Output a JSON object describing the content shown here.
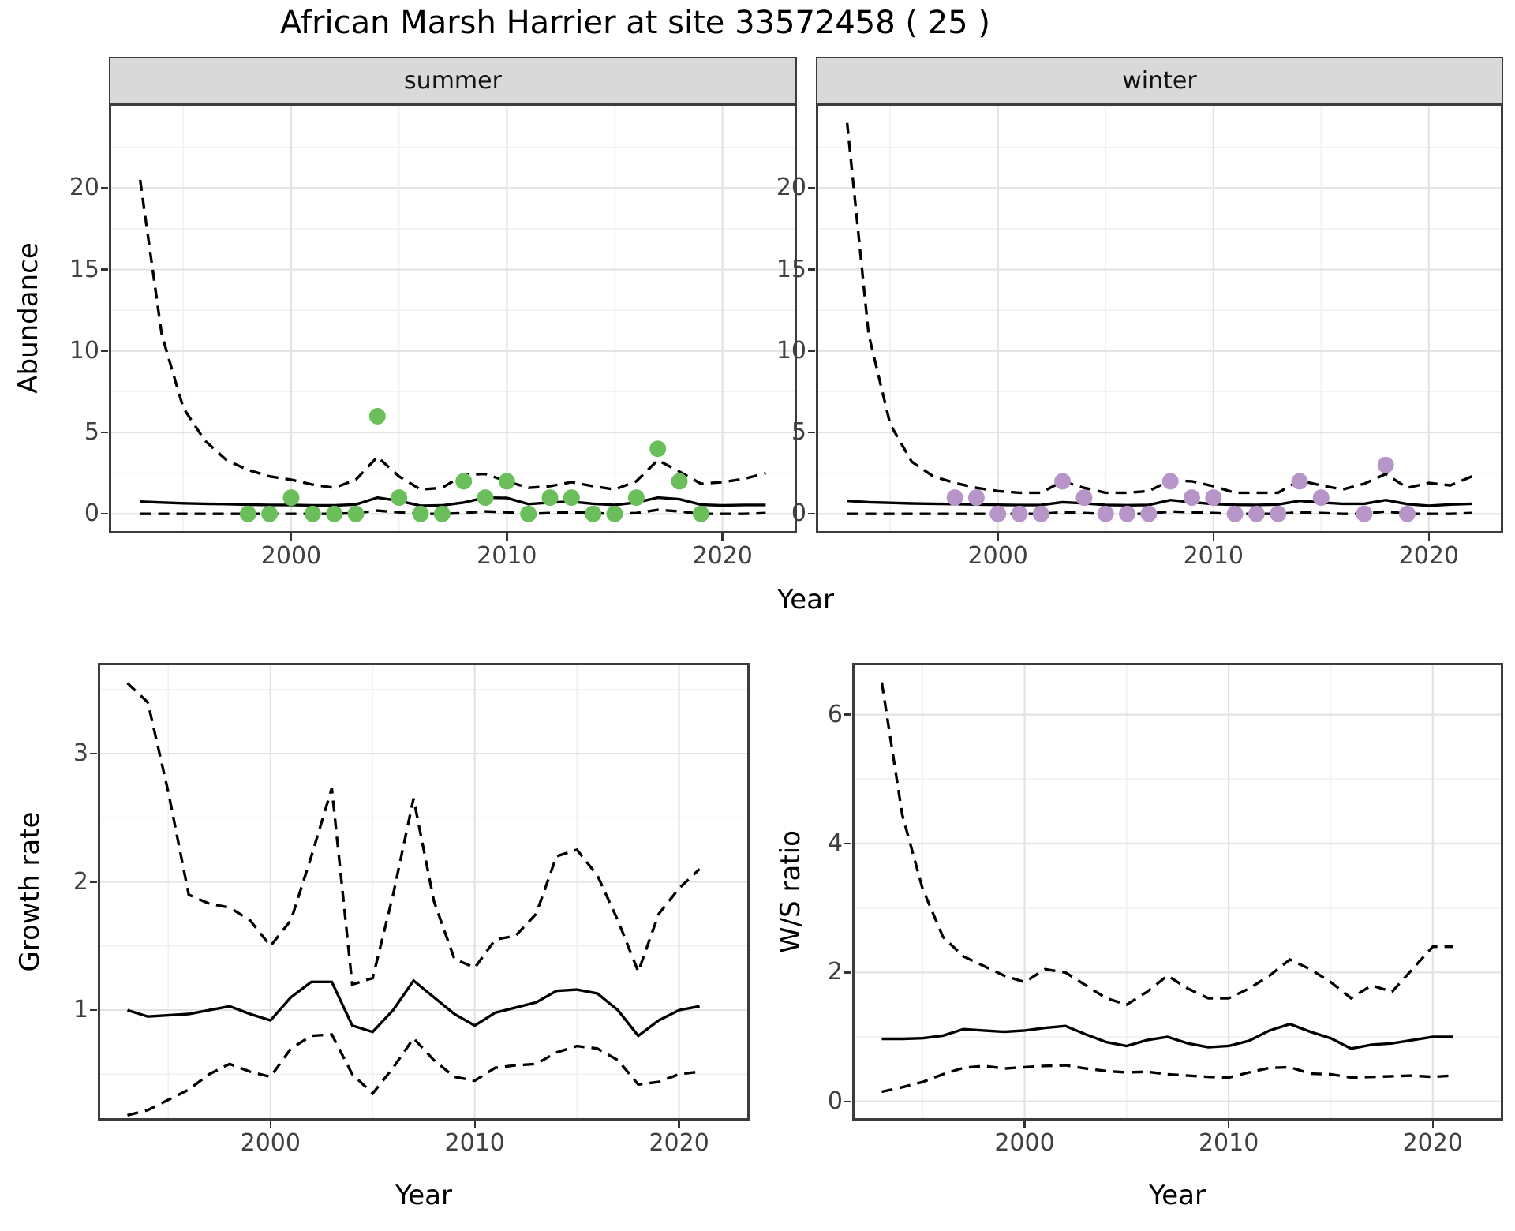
{
  "title": "African Marsh Harrier at site 33572458 ( 25 )",
  "labels": {
    "year": "Year",
    "abundance": "Abundance",
    "growth_rate": "Growth rate",
    "ws_ratio": "W/S ratio"
  },
  "colors": {
    "summer_point": "#6abf5b",
    "winter_point": "#b795c9",
    "line": "#000000",
    "strip_bg": "#d9d9d9",
    "panel_border": "#3c3c3c",
    "grid_major": "#e3e3e3",
    "grid_minor": "#f1f1f1",
    "tick_text": "#404040"
  },
  "chart_data": [
    {
      "id": "abundance-summer",
      "type": "line",
      "facet": "summer",
      "xlabel": "Year",
      "ylabel": "Abundance",
      "xlim": [
        1991.55,
        2023.45
      ],
      "ylim": [
        -1.2,
        25.2
      ],
      "xticks": [
        2000,
        2010,
        2020
      ],
      "xminor": [
        1995,
        2005,
        2015
      ],
      "yticks": [
        0,
        5,
        10,
        15,
        20
      ],
      "yminor": [
        2.5,
        7.5,
        12.5,
        17.5,
        22.5
      ],
      "years": [
        1993,
        1994,
        1995,
        1996,
        1997,
        1998,
        1999,
        2000,
        2001,
        2002,
        2003,
        2004,
        2005,
        2006,
        2007,
        2008,
        2009,
        2010,
        2011,
        2012,
        2013,
        2014,
        2015,
        2016,
        2017,
        2018,
        2019,
        2020,
        2021,
        2022
      ],
      "series": [
        {
          "name": "upper-ci",
          "style": "dashed",
          "values": [
            20.5,
            11.0,
            6.5,
            4.5,
            3.3,
            2.7,
            2.3,
            2.1,
            1.8,
            1.6,
            2.1,
            3.5,
            2.3,
            1.5,
            1.6,
            2.4,
            2.45,
            2.0,
            1.6,
            1.7,
            1.95,
            1.7,
            1.5,
            2.0,
            3.3,
            2.6,
            1.85,
            1.95,
            2.15,
            2.5
          ]
        },
        {
          "name": "median",
          "style": "solid",
          "values": [
            0.75,
            0.7,
            0.65,
            0.62,
            0.6,
            0.57,
            0.55,
            0.55,
            0.52,
            0.52,
            0.58,
            1.0,
            0.8,
            0.5,
            0.52,
            0.7,
            1.0,
            0.98,
            0.6,
            0.7,
            0.75,
            0.62,
            0.55,
            0.7,
            1.0,
            0.9,
            0.57,
            0.52,
            0.55,
            0.55
          ]
        },
        {
          "name": "lower-ci",
          "style": "dashed",
          "values": [
            0,
            0,
            0,
            0,
            0,
            0,
            0,
            0,
            0,
            0,
            0.05,
            0.2,
            0.1,
            0,
            0,
            0.05,
            0.15,
            0.1,
            0,
            0.05,
            0.1,
            0.05,
            0,
            0.05,
            0.25,
            0.15,
            0,
            0,
            0,
            0.05
          ]
        }
      ],
      "points": {
        "color": "#6abf5b",
        "years": [
          1998,
          1999,
          2000,
          2001,
          2002,
          2003,
          2004,
          2005,
          2006,
          2007,
          2008,
          2009,
          2010,
          2011,
          2012,
          2013,
          2014,
          2015,
          2016,
          2017,
          2018,
          2019
        ],
        "values": [
          0,
          0,
          1,
          0,
          0,
          0,
          6,
          1,
          0,
          0,
          2,
          1,
          2,
          0,
          1,
          1,
          0,
          0,
          1,
          4,
          2,
          0
        ]
      }
    },
    {
      "id": "abundance-winter",
      "type": "line",
      "facet": "winter",
      "xlabel": "Year",
      "ylabel": "Abundance",
      "xlim": [
        1991.55,
        2023.45
      ],
      "ylim": [
        -1.2,
        25.2
      ],
      "xticks": [
        2000,
        2010,
        2020
      ],
      "xminor": [
        1995,
        2005,
        2015
      ],
      "yticks": [
        0,
        5,
        10,
        15,
        20
      ],
      "yminor": [
        2.5,
        7.5,
        12.5,
        17.5,
        22.5
      ],
      "years": [
        1993,
        1994,
        1995,
        1996,
        1997,
        1998,
        1999,
        2000,
        2001,
        2002,
        2003,
        2004,
        2005,
        2006,
        2007,
        2008,
        2009,
        2010,
        2011,
        2012,
        2013,
        2014,
        2015,
        2016,
        2017,
        2018,
        2019,
        2020,
        2021,
        2022
      ],
      "series": [
        {
          "name": "upper-ci",
          "style": "dashed",
          "values": [
            24,
            11,
            5.5,
            3.2,
            2.3,
            1.9,
            1.6,
            1.4,
            1.3,
            1.3,
            2.0,
            1.6,
            1.3,
            1.3,
            1.4,
            2.05,
            2.0,
            1.7,
            1.3,
            1.3,
            1.3,
            2.05,
            1.75,
            1.5,
            1.85,
            2.45,
            1.6,
            1.9,
            1.75,
            2.3
          ]
        },
        {
          "name": "median",
          "style": "solid",
          "values": [
            0.8,
            0.72,
            0.68,
            0.64,
            0.62,
            0.6,
            0.58,
            0.56,
            0.54,
            0.55,
            0.72,
            0.65,
            0.55,
            0.53,
            0.55,
            0.85,
            0.72,
            0.6,
            0.56,
            0.55,
            0.58,
            0.8,
            0.7,
            0.62,
            0.62,
            0.85,
            0.6,
            0.5,
            0.58,
            0.62
          ]
        },
        {
          "name": "lower-ci",
          "style": "dashed",
          "values": [
            0,
            0,
            0,
            0,
            0,
            0,
            0,
            0,
            0,
            0,
            0.1,
            0.05,
            0,
            0,
            0,
            0.15,
            0.1,
            0.05,
            0,
            0,
            0,
            0.1,
            0.05,
            0,
            0,
            0.15,
            0,
            0,
            0,
            0.05
          ]
        }
      ],
      "points": {
        "color": "#b795c9",
        "years": [
          1998,
          1999,
          2000,
          2001,
          2002,
          2003,
          2004,
          2005,
          2006,
          2007,
          2008,
          2009,
          2010,
          2011,
          2012,
          2013,
          2014,
          2015,
          2017,
          2018,
          2019
        ],
        "values": [
          1,
          1,
          0,
          0,
          0,
          2,
          1,
          0,
          0,
          0,
          2,
          1,
          1,
          0,
          0,
          0,
          2,
          1,
          0,
          3,
          0
        ]
      }
    },
    {
      "id": "growth-rate",
      "type": "line",
      "facet": "",
      "xlabel": "Year",
      "ylabel": "Growth rate",
      "xlim": [
        1991.55,
        2023.45
      ],
      "ylim": [
        0.139,
        3.708
      ],
      "xticks": [
        2000,
        2010,
        2020
      ],
      "xminor": [
        1995,
        2005,
        2015
      ],
      "yticks": [
        1,
        2,
        3
      ],
      "yminor": [
        0.5,
        1.5,
        2.5,
        3.5
      ],
      "years": [
        1993,
        1994,
        1995,
        1996,
        1997,
        1998,
        1999,
        2000,
        2001,
        2002,
        2003,
        2004,
        2005,
        2006,
        2007,
        2008,
        2009,
        2010,
        2011,
        2012,
        2013,
        2014,
        2015,
        2016,
        2017,
        2018,
        2019,
        2020,
        2021
      ],
      "series": [
        {
          "name": "upper-ci",
          "style": "dashed",
          "values": [
            3.55,
            3.4,
            2.7,
            1.9,
            1.83,
            1.8,
            1.7,
            1.5,
            1.7,
            2.2,
            2.73,
            1.2,
            1.25,
            1.9,
            2.65,
            1.85,
            1.4,
            1.33,
            1.55,
            1.58,
            1.75,
            2.2,
            2.25,
            2.05,
            1.7,
            1.3,
            1.75,
            1.95,
            2.1
          ]
        },
        {
          "name": "median",
          "style": "solid",
          "values": [
            1.0,
            0.95,
            0.96,
            0.97,
            1.0,
            1.03,
            0.97,
            0.92,
            1.1,
            1.22,
            1.22,
            0.88,
            0.83,
            1.0,
            1.23,
            1.1,
            0.97,
            0.88,
            0.98,
            1.02,
            1.06,
            1.15,
            1.16,
            1.13,
            1.0,
            0.8,
            0.92,
            1.0,
            1.03
          ]
        },
        {
          "name": "lower-ci",
          "style": "dashed",
          "values": [
            0.18,
            0.22,
            0.3,
            0.38,
            0.5,
            0.58,
            0.52,
            0.48,
            0.7,
            0.8,
            0.81,
            0.5,
            0.35,
            0.55,
            0.78,
            0.61,
            0.48,
            0.45,
            0.55,
            0.57,
            0.58,
            0.67,
            0.72,
            0.7,
            0.61,
            0.42,
            0.44,
            0.5,
            0.52
          ]
        }
      ],
      "points": null
    },
    {
      "id": "ws-ratio",
      "type": "line",
      "facet": "",
      "xlabel": "Year",
      "ylabel": "W/S ratio",
      "xlim": [
        1991.55,
        2023.45
      ],
      "ylim": [
        -0.297,
        6.803
      ],
      "xticks": [
        2000,
        2010,
        2020
      ],
      "xminor": [
        1995,
        2005,
        2015
      ],
      "yticks": [
        0,
        2,
        4,
        6
      ],
      "yminor": [
        1,
        3,
        5
      ],
      "years": [
        1993,
        1994,
        1995,
        1996,
        1997,
        1998,
        1999,
        2000,
        2001,
        2002,
        2003,
        2004,
        2005,
        2006,
        2007,
        2008,
        2009,
        2010,
        2011,
        2012,
        2013,
        2014,
        2015,
        2016,
        2017,
        2018,
        2019,
        2020,
        2021
      ],
      "series": [
        {
          "name": "upper-ci",
          "style": "dashed",
          "values": [
            6.5,
            4.45,
            3.3,
            2.55,
            2.25,
            2.1,
            1.95,
            1.85,
            2.05,
            2.0,
            1.8,
            1.6,
            1.5,
            1.7,
            1.95,
            1.75,
            1.6,
            1.6,
            1.75,
            1.95,
            2.2,
            2.05,
            1.85,
            1.6,
            1.8,
            1.7,
            2.05,
            2.4,
            2.4
          ]
        },
        {
          "name": "median",
          "style": "solid",
          "values": [
            0.97,
            0.97,
            0.98,
            1.02,
            1.12,
            1.1,
            1.08,
            1.1,
            1.14,
            1.17,
            1.04,
            0.92,
            0.86,
            0.95,
            1.0,
            0.9,
            0.84,
            0.86,
            0.94,
            1.1,
            1.2,
            1.08,
            0.98,
            0.82,
            0.88,
            0.9,
            0.95,
            1.0,
            1.0
          ]
        },
        {
          "name": "lower-ci",
          "style": "dashed",
          "values": [
            0.15,
            0.22,
            0.3,
            0.42,
            0.52,
            0.55,
            0.51,
            0.53,
            0.55,
            0.56,
            0.51,
            0.47,
            0.45,
            0.46,
            0.42,
            0.4,
            0.38,
            0.37,
            0.45,
            0.52,
            0.53,
            0.43,
            0.42,
            0.37,
            0.38,
            0.39,
            0.4,
            0.38,
            0.4
          ]
        }
      ],
      "points": null
    }
  ]
}
